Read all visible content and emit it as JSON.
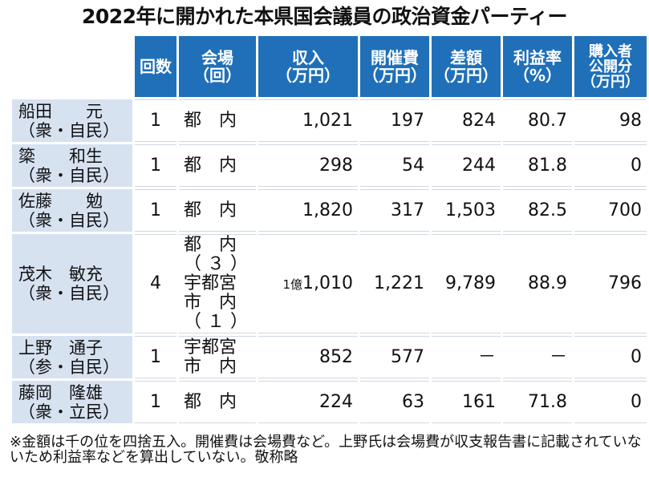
{
  "title": "2022年に開かれた本県国会議員の政治資金パーティー",
  "headers": {
    "count": "回数",
    "venue": "会場\n（回）",
    "income": "収入\n（万円）",
    "cost": "開催費\n（万円）",
    "diff": "差額\n（万円）",
    "rate": "利益率\n（%）",
    "buyers": "購入者\n公開分\n（万円）"
  },
  "rows": [
    {
      "name": "船田　　元\n（衆・自民）",
      "count": "1",
      "venue": "都　内",
      "income": "1,021",
      "cost": "197",
      "diff": "824",
      "rate": "80.7",
      "buyers": "98"
    },
    {
      "name": "簗　　和生\n（衆・自民）",
      "count": "1",
      "venue": "都　内",
      "income": "298",
      "cost": "54",
      "diff": "244",
      "rate": "81.8",
      "buyers": "0"
    },
    {
      "name": "佐藤　　勉\n（衆・自民）",
      "count": "1",
      "venue": "都　内",
      "income": "1,820",
      "cost": "317",
      "diff": "1,503",
      "rate": "82.5",
      "buyers": "700"
    },
    {
      "name": "茂木　敏充\n（衆・自民）",
      "count": "4",
      "venue": "都　内\n（ ３ ）\n宇都宮\n市　内\n（ １ ）",
      "income_oku": "1億",
      "income": "1,010",
      "cost": "1,221",
      "diff": "9,789",
      "rate": "88.9",
      "buyers": "796"
    },
    {
      "name": "上野　通子\n（参・自民）",
      "count": "1",
      "venue": "宇都宮\n市　内",
      "income": "852",
      "cost": "577",
      "diff": "－",
      "rate": "－",
      "buyers": "0"
    },
    {
      "name": "藤岡　隆雄\n（衆・立民）",
      "count": "1",
      "venue": "都　内",
      "income": "224",
      "cost": "63",
      "diff": "161",
      "rate": "71.8",
      "buyers": "0"
    }
  ],
  "note": "※金額は千の位を四捨五入。開催費は会場費など。上野氏は会場費が収支報告書に記載されていないため利益率などを算出していない。敬称略"
}
